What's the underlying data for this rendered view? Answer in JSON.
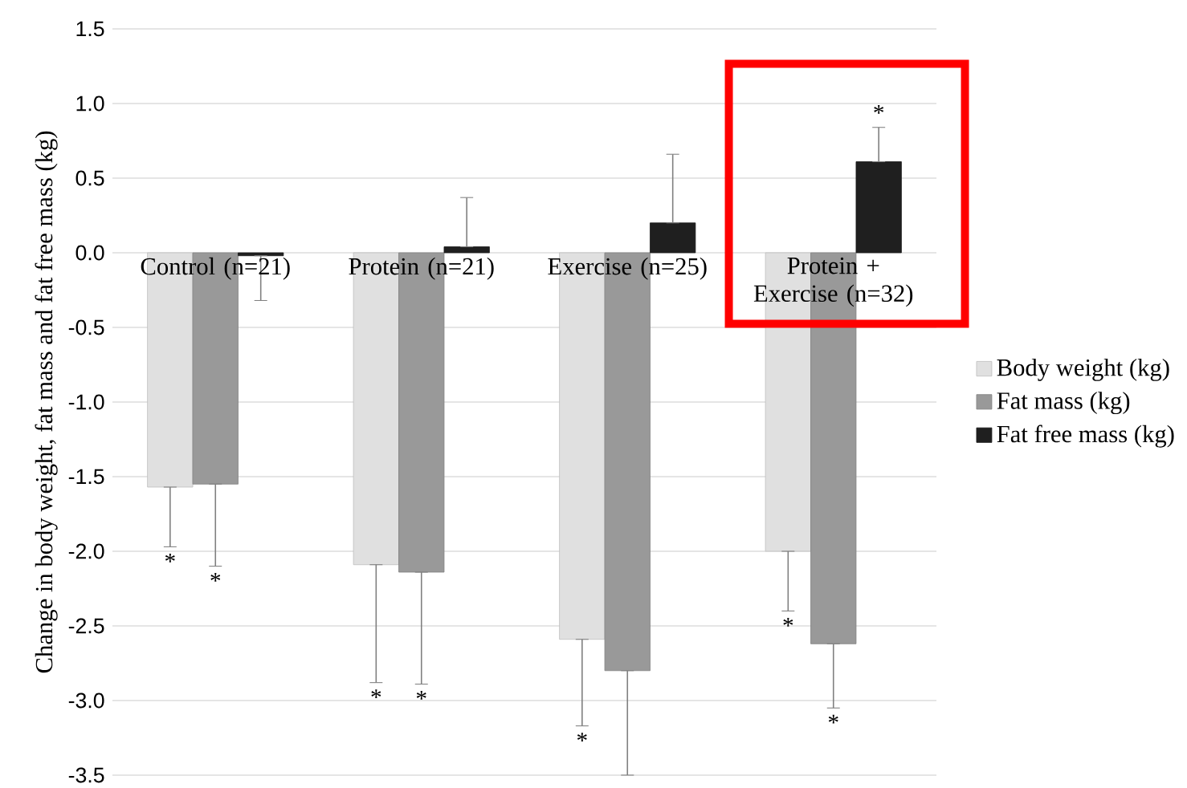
{
  "chart_data": {
    "type": "bar",
    "ylabel": "Change in body weight, fat mass and fat free mass (kg)",
    "categories": [
      "Control (n=21)",
      "Protein (n=21)",
      "Exercise (n=25)",
      "Protein + Exercise (n=32)"
    ],
    "series": [
      {
        "name": "Body weight (kg)",
        "color": "#e0e0e0",
        "values": [
          -1.57,
          -2.09,
          -2.59,
          -2.0
        ],
        "errors": [
          [
            -1.97,
            -1.57
          ],
          [
            -2.88,
            -2.09
          ],
          [
            -3.17,
            -2.59
          ],
          [
            -2.4,
            -2.0
          ]
        ],
        "value_labels": [
          null,
          null,
          null,
          "*"
        ]
      },
      {
        "name": "Fat mass (kg)",
        "color": "#999999",
        "values": [
          -1.55,
          -2.14,
          -2.8,
          -2.62
        ],
        "errors": [
          [
            -2.1,
            -1.55
          ],
          [
            -2.89,
            -2.14
          ],
          [
            -3.5,
            -2.8
          ],
          [
            -3.05,
            -2.62
          ]
        ]
      },
      {
        "name": "Fat free mass (kg)",
        "color": "#1f1f1f",
        "values": [
          -0.02,
          0.04,
          0.2,
          0.61
        ],
        "errors": [
          [
            -0.32,
            -0.02
          ],
          [
            0.04,
            0.37
          ],
          [
            0.2,
            0.66
          ],
          [
            0.61,
            0.84
          ]
        ],
        "value_labels": [
          null,
          null,
          null,
          "*"
        ]
      }
    ],
    "ylim": [
      -3.5,
      1.5
    ],
    "yticks": [
      {
        "value": -3.5,
        "label": "-3.5"
      },
      {
        "value": -3.0,
        "label": "-3.0"
      },
      {
        "value": -2.5,
        "label": "-2.5"
      },
      {
        "value": -2.0,
        "label": "-2.0"
      },
      {
        "value": -1.5,
        "label": "-1.5"
      },
      {
        "value": -1.0,
        "label": "-1.0"
      },
      {
        "value": -0.5,
        "label": "-0.5"
      },
      {
        "value": 0.0,
        "label": "0.0"
      },
      {
        "value": 0.5,
        "label": "0.5"
      },
      {
        "value": 1.0,
        "label": "1.0"
      },
      {
        "value": 1.5,
        "label": "1.5"
      }
    ],
    "grid": "y",
    "legend": "right",
    "annotations": [
      {
        "text": "*",
        "x": "Control (n=21)",
        "y": -1.97
      },
      {
        "text": "*",
        "x": "Control (n=21)",
        "y": -2.1
      },
      {
        "text": "*",
        "x": "Protein (n=21)",
        "y": -2.88
      },
      {
        "text": "*",
        "x": "Protein (n=21)",
        "y": -2.89
      },
      {
        "text": "*",
        "x": "Exercise (n=25)",
        "y": -3.17
      },
      {
        "text": "*",
        "x": "Protein + Exercise (n=32)",
        "y": -3.05
      }
    ]
  }
}
